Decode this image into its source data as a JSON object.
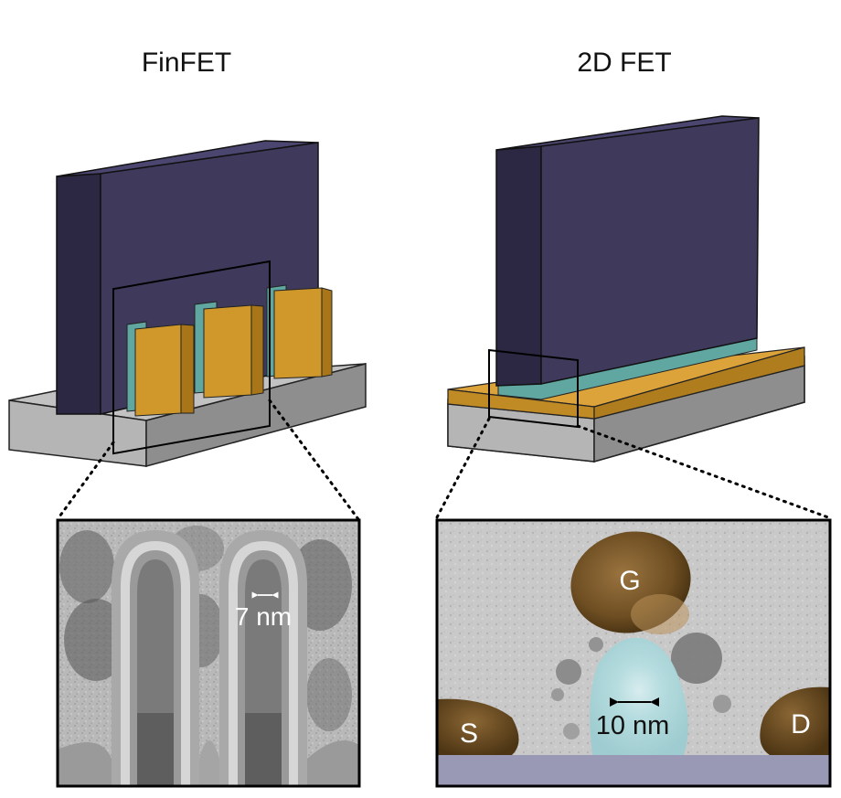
{
  "panels": {
    "left": {
      "title": "FinFET",
      "measurement": "7 nm"
    },
    "right": {
      "title": "2D FET",
      "measurement": "10 nm",
      "labels": {
        "gate": "G",
        "source": "S",
        "drain": "D"
      }
    }
  },
  "colors": {
    "gate": "#3f3a5c",
    "gate_side": "#2c2844",
    "channel": "#d0982a",
    "dielectric": "#5fa7a0",
    "substrate": "#b7b7b7"
  }
}
